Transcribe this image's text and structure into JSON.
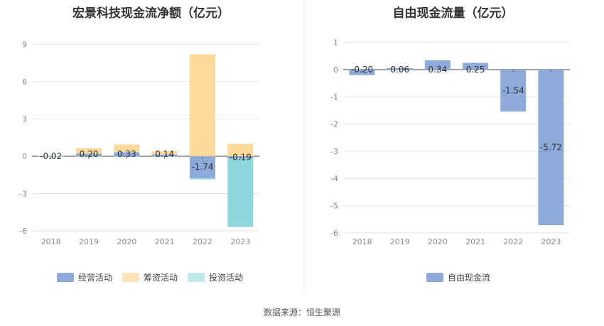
{
  "chart_data": [
    {
      "type": "bar",
      "stacked": true,
      "title": "宏景科技现金流净额（亿元）",
      "categories": [
        "2018",
        "2019",
        "2020",
        "2021",
        "2022",
        "2023"
      ],
      "series": [
        {
          "name": "经营活动",
          "color": "#8eaadb",
          "values": [
            -0.02,
            0.2,
            0.33,
            0.14,
            -1.74,
            -0.19
          ]
        },
        {
          "name": "筹资活动",
          "color": "#ffd99a",
          "values": [
            0.02,
            0.45,
            0.62,
            0.28,
            8.2,
            1.0
          ]
        },
        {
          "name": "投资活动",
          "color": "#8dd7dd",
          "values": [
            -0.03,
            -0.05,
            -0.05,
            -0.05,
            -0.12,
            -5.5
          ]
        }
      ],
      "data_labels": [
        "-0.02",
        "0.20",
        "0.33",
        "0.14",
        "-1.74",
        "-0.19"
      ],
      "yticks": [
        9,
        6,
        3,
        0,
        -3,
        -6
      ],
      "ylim": [
        -6,
        9
      ],
      "grid": true,
      "legend": "bottom"
    },
    {
      "type": "bar",
      "title": "自由现金流量（亿元）",
      "categories": [
        "2018",
        "2019",
        "2020",
        "2021",
        "2022",
        "2023"
      ],
      "series": [
        {
          "name": "自由现金流",
          "color": "#8eaadb",
          "values": [
            -0.2,
            0.06,
            0.34,
            0.25,
            -1.54,
            -5.72
          ]
        }
      ],
      "data_labels": [
        "-0.20",
        "0.06",
        "0.34",
        "0.25",
        "-1.54",
        "-5.72"
      ],
      "yticks": [
        1,
        0,
        -1,
        -2,
        -3,
        -4,
        -5,
        -6
      ],
      "ylim": [
        -6,
        1
      ],
      "grid": true,
      "legend": "bottom"
    }
  ],
  "source": "数据来源：恒生聚源"
}
